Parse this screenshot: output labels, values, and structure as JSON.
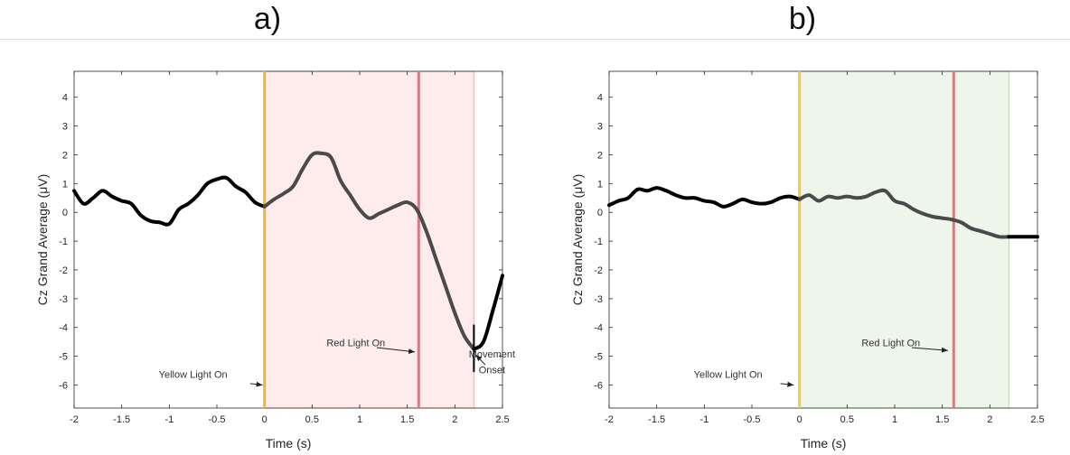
{
  "chart_data": [
    {
      "id": "a",
      "type": "line",
      "title": "a)",
      "xlabel": "Time (s)",
      "ylabel": "Cz Grand Average (μV)",
      "xlim": [
        -2,
        2.5
      ],
      "ylim": [
        -6.8,
        4.9
      ],
      "xticks": [
        -2,
        -1.5,
        -1,
        -0.5,
        0,
        0.5,
        1,
        1.5,
        2,
        2.5
      ],
      "xtick_labels": [
        "-2",
        "-1.5",
        "-1",
        "-0.5",
        "0",
        "0.5",
        "1",
        "1.5",
        "2",
        "2.5"
      ],
      "yticks": [
        -6,
        -5,
        -4,
        -3,
        -2,
        -1,
        0,
        1,
        2,
        3,
        4
      ],
      "ytick_labels": [
        "-6",
        "-5",
        "-4",
        "-3",
        "-2",
        "-1",
        "0",
        "1",
        "2",
        "3",
        "4"
      ],
      "shaded_region": {
        "x": [
          0,
          2.2
        ],
        "fill": "#fdeceb",
        "edge": "#f2b3b0"
      },
      "vlines": [
        {
          "name": "yellow-light",
          "x": 0,
          "color": "#f2b33d"
        },
        {
          "name": "red-light",
          "x": 1.62,
          "color": "#d97a83"
        }
      ],
      "annotations": [
        {
          "name": "yellow-light-annotation",
          "text": "Yellow Light On",
          "text_x": -0.75,
          "text_y": -5.75,
          "arrow_from": [
            -0.15,
            -5.95
          ],
          "arrow_to": [
            -0.02,
            -6.0
          ]
        },
        {
          "name": "red-light-annotation",
          "text": "Red Light On",
          "text_x": 0.96,
          "text_y": -4.65,
          "arrow_from": [
            1.18,
            -4.7
          ],
          "arrow_to": [
            1.58,
            -4.85
          ]
        },
        {
          "name": "movement-onset-annotation",
          "text": "Movement",
          "text2": "Onset",
          "text_x": 2.39,
          "text_y": -5.05,
          "text2_y": -5.6,
          "arrow_from": [
            2.32,
            -5.3
          ],
          "arrow_to": [
            2.22,
            -4.95
          ]
        }
      ],
      "onset_marker": {
        "x": 2.2,
        "y1": -3.9,
        "y2": -5.55
      },
      "series": [
        {
          "x": [
            -2.0,
            -1.9,
            -1.8,
            -1.7,
            -1.6,
            -1.5,
            -1.4,
            -1.3,
            -1.2,
            -1.1,
            -1.0,
            -0.9,
            -0.8,
            -0.7,
            -0.6,
            -0.5,
            -0.4,
            -0.3,
            -0.2,
            -0.1,
            0.0,
            0.1,
            0.2,
            0.3,
            0.4,
            0.5,
            0.6,
            0.7,
            0.8,
            0.9,
            1.0,
            1.1,
            1.2,
            1.3,
            1.4,
            1.5,
            1.6,
            1.7,
            1.8,
            1.9,
            2.0,
            2.1,
            2.2,
            2.3,
            2.4,
            2.5
          ],
          "values": [
            0.75,
            0.3,
            0.5,
            0.75,
            0.55,
            0.4,
            0.3,
            -0.1,
            -0.3,
            -0.35,
            -0.4,
            0.1,
            0.3,
            0.6,
            1.0,
            1.15,
            1.2,
            0.9,
            0.7,
            0.35,
            0.2,
            0.45,
            0.65,
            0.9,
            1.5,
            2.0,
            2.05,
            1.9,
            1.1,
            0.6,
            0.1,
            -0.2,
            -0.05,
            0.1,
            0.25,
            0.35,
            0.1,
            -0.65,
            -1.6,
            -2.55,
            -3.5,
            -4.3,
            -4.75,
            -4.5,
            -3.4,
            -2.2
          ],
          "segments": [
            {
              "x": [
                -2,
                0
              ],
              "color": "#000000"
            },
            {
              "x": [
                0,
                2.2
              ],
              "color": "#4a4a4a"
            },
            {
              "x": [
                2.2,
                2.5
              ],
              "color": "#000000"
            }
          ]
        }
      ]
    },
    {
      "id": "b",
      "type": "line",
      "title": "b)",
      "xlabel": "Time (s)",
      "ylabel": "Cz Grand Average (μV)",
      "xlim": [
        -2,
        2.5
      ],
      "ylim": [
        -6.8,
        4.9
      ],
      "xticks": [
        -2,
        -1.5,
        -1,
        -0.5,
        0,
        0.5,
        1,
        1.5,
        2,
        2.5
      ],
      "xtick_labels": [
        "-2",
        "-1.5",
        "-1",
        "-0.5",
        "0",
        "0.5",
        "1",
        "1.5",
        "2",
        "2.5"
      ],
      "yticks": [
        -6,
        -5,
        -4,
        -3,
        -2,
        -1,
        0,
        1,
        2,
        3,
        4
      ],
      "ytick_labels": [
        "-6",
        "-5",
        "-4",
        "-3",
        "-2",
        "-1",
        "0",
        "1",
        "2",
        "3",
        "4"
      ],
      "shaded_region": {
        "x": [
          0,
          2.2
        ],
        "fill": "#eef6ec",
        "edge": "#b9dbb2"
      },
      "vlines": [
        {
          "name": "yellow-light",
          "x": 0,
          "color": "#f2c94c"
        },
        {
          "name": "red-light",
          "x": 1.62,
          "color": "#d97a83"
        }
      ],
      "annotations": [
        {
          "name": "yellow-light-annotation",
          "text": "Yellow Light On",
          "text_x": -0.75,
          "text_y": -5.75,
          "arrow_from": [
            -0.2,
            -5.95
          ],
          "arrow_to": [
            -0.06,
            -6.0
          ]
        },
        {
          "name": "red-light-annotation",
          "text": "Red Light On",
          "text_x": 0.96,
          "text_y": -4.65,
          "arrow_from": [
            1.18,
            -4.7
          ],
          "arrow_to": [
            1.56,
            -4.8
          ]
        }
      ],
      "series": [
        {
          "x": [
            -2.0,
            -1.9,
            -1.8,
            -1.7,
            -1.6,
            -1.5,
            -1.4,
            -1.3,
            -1.2,
            -1.1,
            -1.0,
            -0.9,
            -0.8,
            -0.7,
            -0.6,
            -0.5,
            -0.4,
            -0.3,
            -0.2,
            -0.1,
            0.0,
            0.1,
            0.2,
            0.3,
            0.4,
            0.5,
            0.6,
            0.7,
            0.8,
            0.9,
            1.0,
            1.1,
            1.2,
            1.3,
            1.4,
            1.5,
            1.6,
            1.7,
            1.8,
            1.9,
            2.0,
            2.1,
            2.2,
            2.3,
            2.4,
            2.5
          ],
          "values": [
            0.25,
            0.4,
            0.5,
            0.8,
            0.75,
            0.85,
            0.75,
            0.6,
            0.5,
            0.5,
            0.4,
            0.35,
            0.2,
            0.3,
            0.45,
            0.35,
            0.3,
            0.35,
            0.5,
            0.55,
            0.45,
            0.6,
            0.4,
            0.55,
            0.5,
            0.55,
            0.5,
            0.55,
            0.7,
            0.75,
            0.4,
            0.3,
            0.1,
            -0.05,
            -0.15,
            -0.2,
            -0.25,
            -0.35,
            -0.55,
            -0.65,
            -0.75,
            -0.85,
            -0.85,
            -0.85,
            -0.85,
            -0.85
          ],
          "segments": [
            {
              "x": [
                -2,
                0
              ],
              "color": "#000000"
            },
            {
              "x": [
                0,
                2.2
              ],
              "color": "#4a4a4a"
            },
            {
              "x": [
                2.2,
                2.5
              ],
              "color": "#000000"
            }
          ]
        }
      ]
    }
  ]
}
